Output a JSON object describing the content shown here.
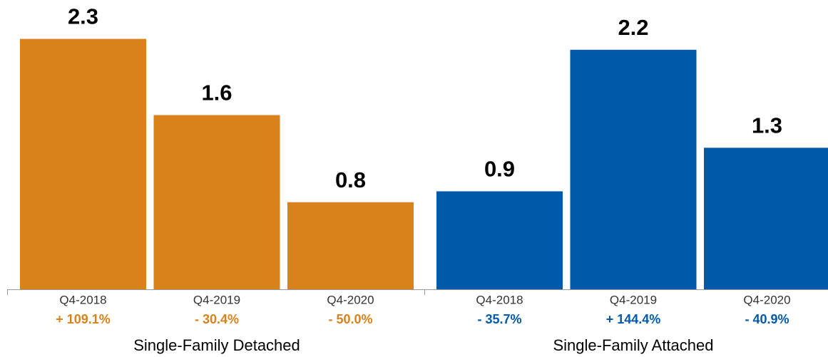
{
  "chart_data": {
    "type": "bar",
    "ylim": [
      0,
      2.5
    ],
    "groups": [
      {
        "name": "Single-Family Detached",
        "color": "#d9821c",
        "categories": [
          "Q4-2018",
          "Q4-2019",
          "Q4-2020"
        ],
        "values": [
          2.3,
          1.6,
          0.8
        ],
        "changes": [
          "+ 109.1%",
          "- 30.4%",
          "- 50.0%"
        ]
      },
      {
        "name": "Single-Family Attached",
        "color": "#005aa9",
        "categories": [
          "Q4-2018",
          "Q4-2019",
          "Q4-2020"
        ],
        "values": [
          0.9,
          2.2,
          1.3
        ],
        "changes": [
          "- 35.7%",
          "+ 144.4%",
          "- 40.9%"
        ]
      }
    ]
  }
}
